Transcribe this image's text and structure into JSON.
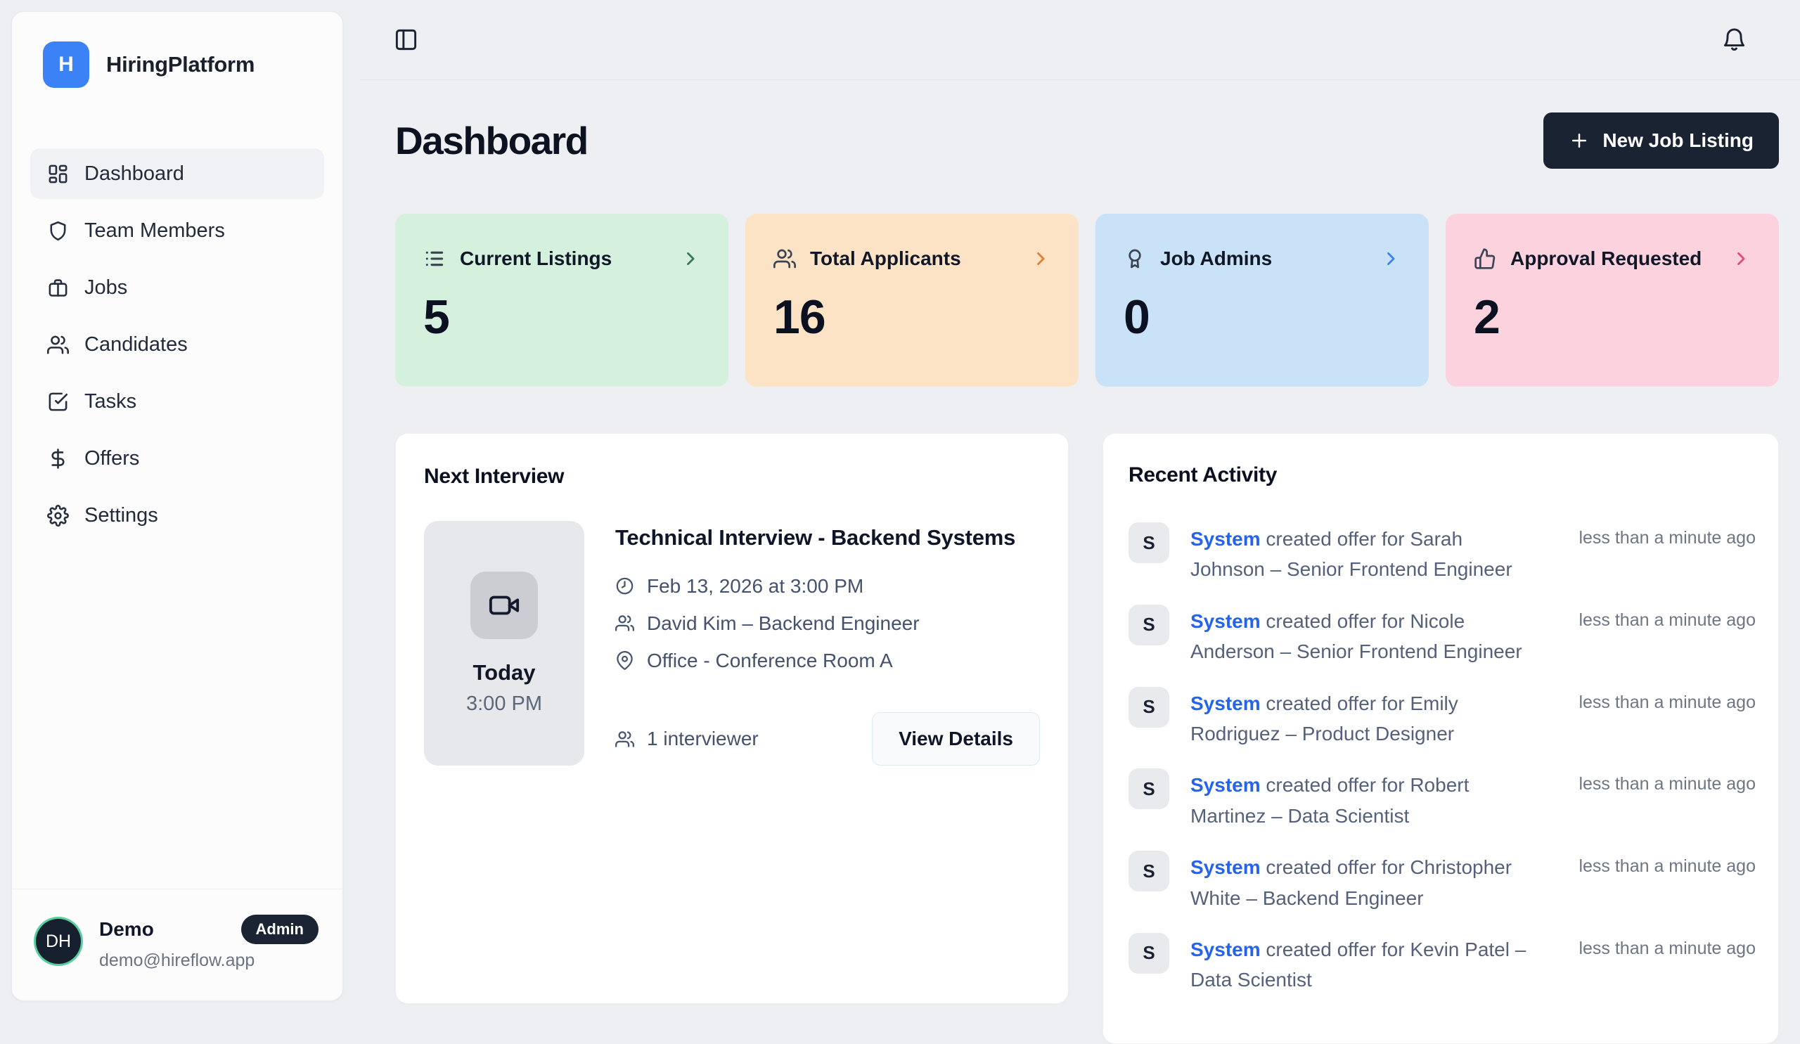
{
  "app": {
    "name": "HiringPlatform",
    "logo_letter": "H"
  },
  "sidebar": {
    "nav": [
      {
        "label": "Dashboard",
        "icon": "dashboard-icon",
        "active": true
      },
      {
        "label": "Team Members",
        "icon": "shield-icon",
        "active": false
      },
      {
        "label": "Jobs",
        "icon": "briefcase-icon",
        "active": false
      },
      {
        "label": "Candidates",
        "icon": "users-icon",
        "active": false
      },
      {
        "label": "Tasks",
        "icon": "task-check-icon",
        "active": false
      },
      {
        "label": "Offers",
        "icon": "dollar-icon",
        "active": false
      },
      {
        "label": "Settings",
        "icon": "gear-icon",
        "active": false
      }
    ],
    "user": {
      "initials": "DH",
      "name": "Demo",
      "role_badge": "Admin",
      "email": "demo@hireflow.app"
    }
  },
  "header": {
    "page_title": "Dashboard",
    "new_job_button": "New Job Listing"
  },
  "stats": [
    {
      "label": "Current Listings",
      "value": "5",
      "icon": "list-icon",
      "bg": "#d5f0dd",
      "accent": "#377952"
    },
    {
      "label": "Total Applicants",
      "value": "16",
      "icon": "users-icon",
      "bg": "#fde3c6",
      "accent": "#de8136"
    },
    {
      "label": "Job Admins",
      "value": "0",
      "icon": "award-icon",
      "bg": "#c9e2f8",
      "accent": "#3b82f6"
    },
    {
      "label": "Approval Requested",
      "value": "2",
      "icon": "thumbs-up-icon",
      "bg": "#fbd2de",
      "accent": "#e14d79"
    }
  ],
  "next_interview": {
    "section_title": "Next Interview",
    "day_label": "Today",
    "time_label": "3:00 PM",
    "title": "Technical Interview - Backend Systems",
    "datetime": "Feb 13, 2026 at 3:00 PM",
    "candidate": "David Kim – Backend Engineer",
    "location": "Office - Conference Room A",
    "interviewers": "1 interviewer",
    "view_details_button": "View Details"
  },
  "recent_activity": {
    "section_title": "Recent Activity",
    "items": [
      {
        "avatar": "S",
        "actor": "System",
        "message": "created offer for Sarah Johnson – Senior Frontend Engineer",
        "time": "less than a minute ago"
      },
      {
        "avatar": "S",
        "actor": "System",
        "message": "created offer for Nicole Anderson – Senior Frontend Engineer",
        "time": "less than a minute ago"
      },
      {
        "avatar": "S",
        "actor": "System",
        "message": "created offer for Emily Rodriguez – Product Designer",
        "time": "less than a minute ago"
      },
      {
        "avatar": "S",
        "actor": "System",
        "message": "created offer for Robert Martinez – Data Scientist",
        "time": "less than a minute ago"
      },
      {
        "avatar": "S",
        "actor": "System",
        "message": "created offer for Christopher White – Backend Engineer",
        "time": "less than a minute ago"
      },
      {
        "avatar": "S",
        "actor": "System",
        "message": "created offer for Kevin Patel – Data Scientist",
        "time": "less than a minute ago"
      }
    ]
  }
}
